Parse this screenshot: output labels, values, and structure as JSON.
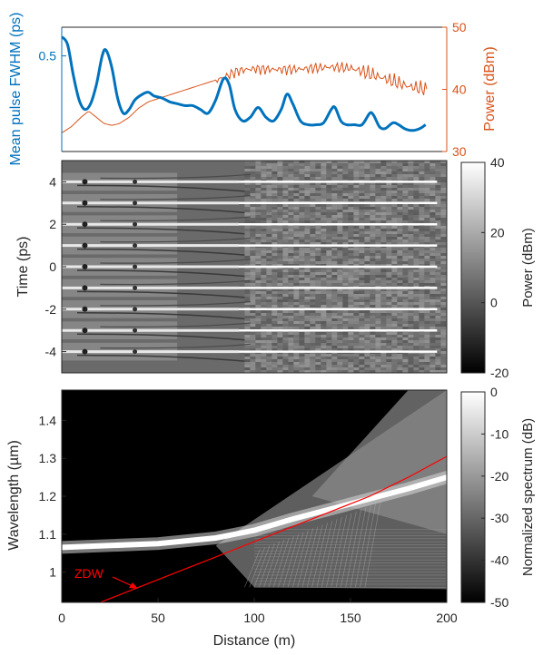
{
  "chart_data": [
    {
      "type": "line",
      "id": "fwhm-power",
      "ylabel_left": "Mean pulse FWHM (ps)",
      "ylabel_right": "Power (dBm)",
      "xlim": [
        0,
        200
      ],
      "ylim_left": [
        0,
        0.65
      ],
      "ylim_right": [
        30,
        50
      ],
      "yticks_left": [
        0.5
      ],
      "yticks_right": [
        30,
        40,
        50
      ],
      "colors": {
        "fwhm": "#0072BD",
        "power": "#D95319"
      },
      "series": [
        {
          "axis": "left",
          "x": [
            0,
            3,
            6,
            9,
            12,
            15,
            18,
            21,
            23,
            26,
            29,
            32,
            35,
            38,
            42,
            45,
            48,
            52,
            56,
            60,
            64,
            68,
            72,
            76,
            80,
            84,
            87,
            90,
            94,
            98,
            102,
            106,
            110,
            114,
            117,
            120,
            124,
            128,
            132,
            136,
            140,
            142,
            145,
            148,
            152,
            156,
            160,
            162,
            165,
            168,
            172,
            175,
            178,
            182,
            186,
            189
          ],
          "values": [
            0.6,
            0.56,
            0.4,
            0.27,
            0.22,
            0.25,
            0.35,
            0.5,
            0.53,
            0.44,
            0.28,
            0.2,
            0.22,
            0.27,
            0.3,
            0.31,
            0.29,
            0.28,
            0.26,
            0.25,
            0.24,
            0.24,
            0.22,
            0.2,
            0.27,
            0.38,
            0.35,
            0.22,
            0.16,
            0.18,
            0.23,
            0.18,
            0.16,
            0.22,
            0.3,
            0.25,
            0.16,
            0.14,
            0.14,
            0.15,
            0.22,
            0.23,
            0.16,
            0.14,
            0.14,
            0.14,
            0.2,
            0.19,
            0.13,
            0.12,
            0.15,
            0.14,
            0.12,
            0.11,
            0.12,
            0.14
          ]
        },
        {
          "axis": "right",
          "x": [
            0,
            5,
            10,
            14,
            18,
            22,
            26,
            30,
            35,
            40,
            45,
            50,
            55,
            60,
            65,
            70,
            75,
            80,
            85,
            88,
            92,
            96,
            100,
            110,
            120,
            130,
            140,
            150,
            155,
            160,
            165,
            170,
            175,
            180,
            185,
            190
          ],
          "values": [
            33,
            34,
            35.5,
            36.5,
            35.5,
            34.5,
            34.2,
            34.5,
            35.5,
            37,
            38,
            38.5,
            39,
            39.5,
            40,
            40.5,
            41,
            41.5,
            42,
            42.5,
            43,
            43.2,
            43.3,
            43.2,
            43.2,
            43.4,
            43.6,
            43.4,
            43,
            42.5,
            42,
            41.5,
            41,
            40.5,
            40.2,
            40
          ]
        }
      ]
    },
    {
      "type": "heatmap",
      "id": "temporal",
      "ylabel": "Time (ps)",
      "xlim": [
        0,
        200
      ],
      "ylim": [
        -5,
        5
      ],
      "yticks": [
        -4,
        -2,
        0,
        2,
        4
      ],
      "colorbar": {
        "label": "Power (dBm)",
        "range": [
          -20,
          40
        ],
        "ticks": [
          -20,
          0,
          20,
          40
        ]
      },
      "pulse_positions": [
        -4,
        -3,
        -2,
        -1,
        0,
        1,
        2,
        3,
        4
      ]
    },
    {
      "type": "heatmap",
      "id": "spectral",
      "xlabel": "Distance (m)",
      "ylabel": "Wavelength (µm)",
      "xlim": [
        0,
        200
      ],
      "ylim": [
        0.92,
        1.48
      ],
      "xticks": [
        0,
        50,
        100,
        150,
        200
      ],
      "yticks": [
        1,
        1.1,
        1.2,
        1.3,
        1.4
      ],
      "colorbar": {
        "label": "Normalized spectrum (dB)",
        "range": [
          -50,
          0
        ],
        "ticks": [
          -50,
          -40,
          -30,
          -20,
          -10,
          0
        ]
      },
      "zdw_curve": {
        "label": "ZDW",
        "color": "#FF0000",
        "x": [
          20,
          40,
          60,
          80,
          100,
          120,
          140,
          160,
          180,
          200
        ],
        "values": [
          0.92,
          0.96,
          1.0,
          1.04,
          1.08,
          1.12,
          1.16,
          1.2,
          1.25,
          1.305
        ]
      },
      "soliton_band": {
        "x": [
          0,
          50,
          80,
          100,
          120,
          150,
          180,
          200
        ],
        "values": [
          1.065,
          1.075,
          1.09,
          1.11,
          1.14,
          1.18,
          1.22,
          1.25
        ]
      }
    }
  ]
}
